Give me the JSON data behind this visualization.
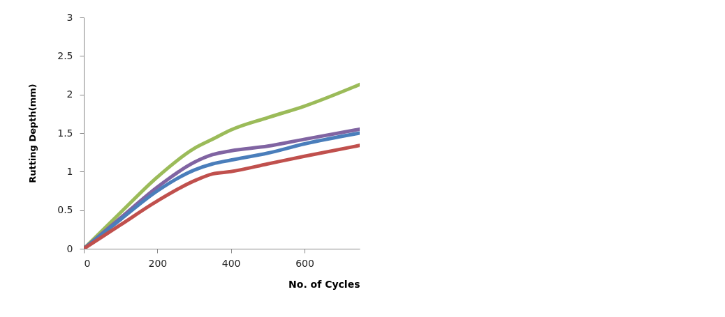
{
  "chart_data": {
    "type": "line",
    "xlabel": "No. of Cycles",
    "ylabel": "Rutting Depth(mm)",
    "x": [
      0,
      100,
      200,
      300,
      350,
      400,
      500,
      600,
      750
    ],
    "series": [
      {
        "color": "#9bbb59",
        "values": [
          0,
          0.47,
          0.93,
          1.3,
          1.42,
          1.54,
          1.7,
          1.85,
          2.13
        ]
      },
      {
        "color": "#8064a2",
        "values": [
          0,
          0.4,
          0.8,
          1.12,
          1.22,
          1.27,
          1.33,
          1.42,
          1.55
        ]
      },
      {
        "color": "#4a7ebb",
        "values": [
          0,
          0.38,
          0.75,
          1.02,
          1.1,
          1.15,
          1.24,
          1.36,
          1.5
        ]
      },
      {
        "color": "#c0504d",
        "values": [
          0,
          0.31,
          0.62,
          0.88,
          0.97,
          1.0,
          1.1,
          1.2,
          1.34
        ]
      }
    ],
    "xlim": [
      0,
      750
    ],
    "xticks": [
      0,
      200,
      400,
      600
    ],
    "ylim": [
      0,
      3
    ],
    "yticks": [
      0,
      0.5,
      1,
      1.5,
      2,
      2.5,
      3
    ],
    "grid": false,
    "legend": false,
    "marker": "none",
    "line_style": "solid"
  }
}
